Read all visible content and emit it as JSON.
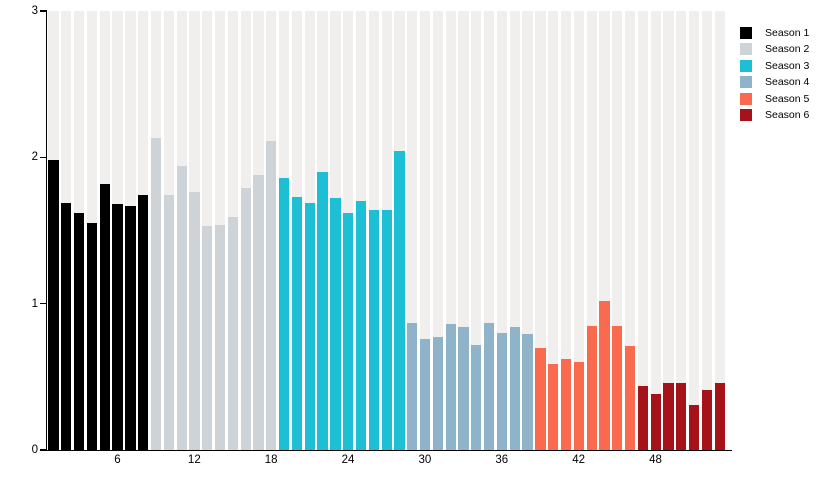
{
  "chart_data": {
    "type": "bar",
    "title": "",
    "xlabel": "",
    "ylabel": "",
    "ylim": [
      0,
      3
    ],
    "yticks": [
      0,
      1,
      2,
      3
    ],
    "xticks": [
      6,
      12,
      18,
      24,
      30,
      36,
      42,
      48
    ],
    "total_bars": 53,
    "grid": "off",
    "background_stripes": true,
    "stripe_color": "#f0efee",
    "axis_color": "#000000",
    "legend_position": "top-right-outside",
    "series": [
      {
        "name": "Season 1",
        "color": "#000000",
        "values": [
          1.98,
          1.69,
          1.62,
          1.55,
          1.82,
          1.68,
          1.67,
          1.74
        ]
      },
      {
        "name": "Season 2",
        "color": "#cdd3d7",
        "values": [
          2.13,
          1.74,
          1.94,
          1.76,
          1.53,
          1.54,
          1.59,
          1.79,
          1.88,
          2.11
        ]
      },
      {
        "name": "Season 3",
        "color": "#1dbfd5",
        "values": [
          1.86,
          1.73,
          1.69,
          1.9,
          1.72,
          1.62,
          1.7,
          1.64,
          1.64,
          2.04
        ]
      },
      {
        "name": "Season 4",
        "color": "#8fb4c9",
        "values": [
          0.87,
          0.76,
          0.77,
          0.86,
          0.84,
          0.72,
          0.87,
          0.8,
          0.84,
          0.79
        ]
      },
      {
        "name": "Season 5",
        "color": "#fa6a4e",
        "values": [
          0.7,
          0.59,
          0.62,
          0.6,
          0.85,
          1.02,
          0.85,
          0.71
        ]
      },
      {
        "name": "Season 6",
        "color": "#a6121a",
        "values": [
          0.44,
          0.38,
          0.46,
          0.46,
          0.31,
          0.41,
          0.46
        ]
      }
    ]
  }
}
